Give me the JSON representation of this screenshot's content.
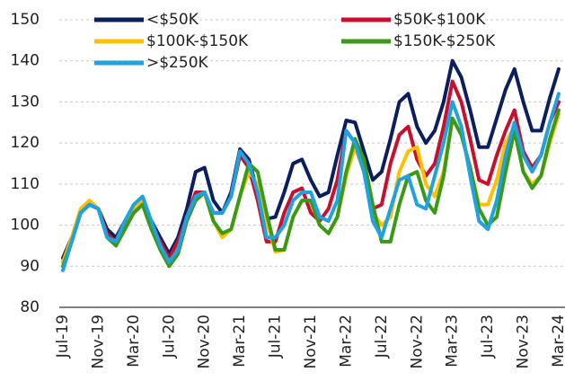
{
  "chart_data": {
    "type": "line",
    "categories": [
      "Jul-19",
      null,
      null,
      null,
      "Nov-19",
      null,
      null,
      null,
      "Mar-20",
      null,
      null,
      null,
      "Jul-20",
      null,
      null,
      null,
      "Nov-20",
      null,
      null,
      null,
      "Mar-21",
      null,
      null,
      null,
      "Jul-21",
      null,
      null,
      null,
      "Nov-21",
      null,
      null,
      null,
      "Mar-22",
      null,
      null,
      null,
      "Jul-22",
      null,
      null,
      null,
      "Nov-22",
      null,
      null,
      null,
      "Mar-23",
      null,
      null,
      null,
      "Jul-23",
      null,
      null,
      null,
      "Nov-23",
      null,
      null,
      null,
      "Mar-24"
    ],
    "series": [
      {
        "name": "<$50K",
        "color": "#0b1f5e",
        "values": [
          92,
          97,
          103,
          105,
          104,
          99,
          97,
          101,
          104,
          106,
          101,
          97,
          93,
          97,
          104,
          113,
          114,
          106,
          103,
          108,
          118.5,
          116,
          108,
          101.5,
          102,
          108,
          115,
          116,
          111,
          107,
          108,
          117,
          125.5,
          125,
          118,
          111,
          113,
          121,
          130,
          132,
          124,
          120,
          123,
          130,
          140,
          136,
          128,
          119,
          119,
          126,
          133,
          138,
          130,
          123,
          123,
          131,
          138
        ]
      },
      {
        "name": "$50K-$100K",
        "color": "#c8102e",
        "values": [
          91,
          96,
          103,
          105,
          104,
          98,
          96,
          100,
          104,
          106,
          100,
          96,
          92,
          96,
          102,
          108,
          108,
          103,
          103,
          107,
          117,
          114,
          106,
          96,
          96,
          103,
          108,
          109,
          103,
          101,
          104,
          111,
          123,
          120,
          113,
          104,
          105,
          115,
          122,
          124,
          116,
          112,
          115,
          124,
          135,
          130,
          121,
          111,
          110,
          117,
          123,
          128,
          118,
          114,
          117,
          125,
          130
        ]
      },
      {
        "name": "$100K-$150K",
        "color": "#ffc000",
        "values": [
          91,
          97,
          104,
          106,
          104,
          97,
          96,
          101,
          104,
          106,
          99,
          95,
          91,
          94,
          101,
          107,
          108,
          101,
          97,
          99,
          107,
          113,
          110,
          101,
          93.5,
          94,
          102,
          106,
          106,
          100,
          98,
          102,
          112,
          119,
          113,
          103,
          100,
          102,
          113,
          118,
          119,
          110,
          107,
          113,
          126,
          122,
          114,
          105,
          105,
          111,
          120,
          124,
          113,
          110,
          112,
          120,
          127
        ]
      },
      {
        "name": "$150K-$250K",
        "color": "#3a9a17",
        "values": [
          90,
          96,
          103,
          105,
          104,
          97,
          95,
          99,
          103,
          105,
          99,
          94,
          90,
          93,
          101,
          106,
          108,
          101,
          98,
          99,
          107,
          115,
          113,
          103,
          94,
          94,
          102,
          106,
          106,
          100,
          98,
          102,
          113,
          121,
          116,
          105,
          96,
          96,
          105,
          112,
          113,
          106,
          103,
          112,
          126,
          122,
          114,
          104,
          100,
          102,
          113,
          123,
          113,
          109,
          112,
          121,
          128
        ]
      },
      {
        "name": ">$250K",
        "color": "#1fa2e0",
        "values": [
          89,
          96,
          103,
          105,
          104,
          97,
          96,
          101,
          105,
          107,
          101,
          95,
          91,
          94,
          102,
          107,
          108,
          103,
          103,
          107,
          118,
          115,
          108,
          97,
          97,
          100,
          106,
          108,
          108,
          102,
          101,
          106,
          123,
          120,
          113,
          101,
          97,
          104,
          111,
          112,
          105,
          104,
          112,
          120,
          130,
          124,
          112,
          101,
          99,
          106,
          117,
          125,
          117,
          113,
          117,
          125,
          132
        ]
      }
    ],
    "ylim": [
      80,
      150
    ],
    "yticks": [
      80,
      90,
      100,
      110,
      120,
      130,
      140,
      150
    ],
    "grid": true,
    "legend_position": "top"
  }
}
